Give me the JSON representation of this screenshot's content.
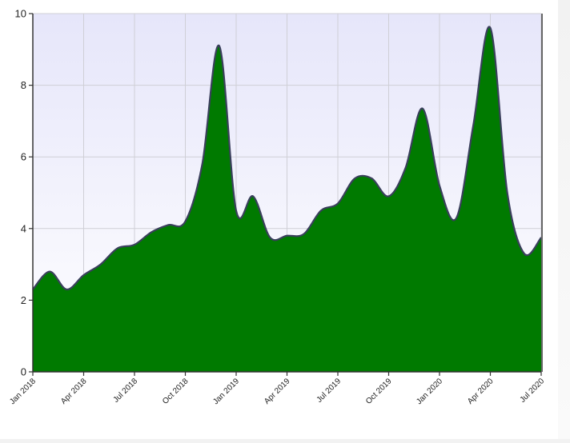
{
  "chart_data": {
    "type": "area",
    "title": "",
    "xlabel": "",
    "ylabel": "",
    "ylim": [
      0,
      10
    ],
    "yticks": [
      0,
      2,
      4,
      6,
      8,
      10
    ],
    "grid": true,
    "x_tick_labels": [
      "Jan 2018",
      "Apr 2018",
      "Jul 2018",
      "Oct 2018",
      "Jan 2019",
      "Apr 2019",
      "Jul 2019",
      "Oct 2019",
      "Jan 2020",
      "Apr 2020",
      "Jul 2020"
    ],
    "colors": {
      "fill": "#007a00",
      "line": "#3a3f5c",
      "plot_bg_top": "#e6e6fa",
      "plot_bg_bottom": "#ffffff",
      "grid": "#cfcfd6"
    },
    "series": [
      {
        "x": [
          "2018-01",
          "2018-02",
          "2018-03",
          "2018-04",
          "2018-05",
          "2018-06",
          "2018-07",
          "2018-08",
          "2018-09",
          "2018-10",
          "2018-11",
          "2018-12",
          "2019-01",
          "2019-02",
          "2019-03",
          "2019-04",
          "2019-05",
          "2019-06",
          "2019-07",
          "2019-08",
          "2019-09",
          "2019-10",
          "2019-11",
          "2019-12",
          "2020-01",
          "2020-02",
          "2020-03",
          "2020-04",
          "2020-05",
          "2020-06",
          "2020-07"
        ],
        "values": [
          2.3,
          2.8,
          2.3,
          2.7,
          3.0,
          3.45,
          3.55,
          3.9,
          4.1,
          4.2,
          5.8,
          9.1,
          4.5,
          4.9,
          3.75,
          3.8,
          3.85,
          4.5,
          4.7,
          5.4,
          5.4,
          4.9,
          5.7,
          7.35,
          5.2,
          4.3,
          6.9,
          9.6,
          5.0,
          3.3,
          3.75
        ]
      }
    ]
  }
}
